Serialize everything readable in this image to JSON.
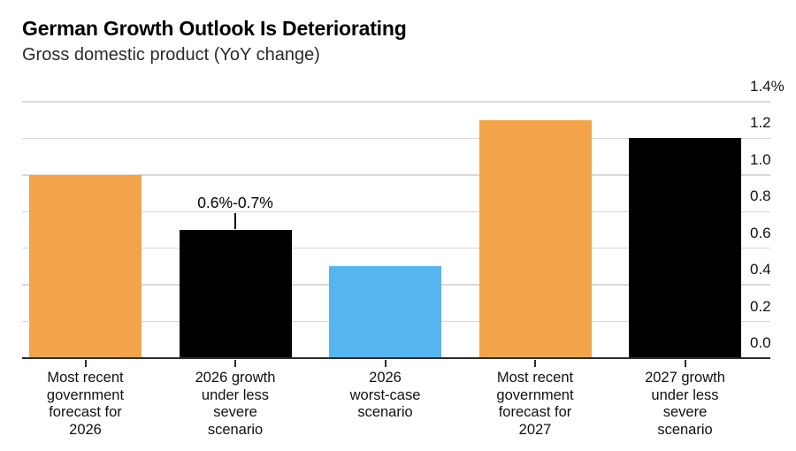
{
  "header": {
    "title": "German Growth Outlook Is Deteriorating",
    "subtitle": "Gross domestic product (YoY change)"
  },
  "chart_data": {
    "type": "bar",
    "title": "German Growth Outlook Is Deteriorating",
    "subtitle": "Gross domestic product (YoY change)",
    "categories": [
      "Most recent government forecast for 2026",
      "2026 growth under less severe scenario",
      "2026 worst-case scenario",
      "Most recent government forecast for 2027",
      "2027 growth under less severe scenario"
    ],
    "category_display": [
      "Most recent\ngovernment\nforecast for\n2026",
      "2026 growth\nunder less\nsevere\nscenario",
      "2026\nworst-case\nscenario",
      "Most recent\ngovernment\nforecast for\n2027",
      "2027 growth\nunder less\nsevere\nscenario"
    ],
    "values": [
      1.0,
      0.7,
      0.5,
      1.3,
      1.2
    ],
    "bar_colors": [
      "#f3a44a",
      "#000000",
      "#56b4ef",
      "#f3a44a",
      "#000000"
    ],
    "annotation": {
      "bar_index": 1,
      "text": "0.6%-0.7%"
    },
    "y_axis": {
      "min": 0.0,
      "max": 1.4,
      "step": 0.2,
      "side": "right",
      "tick_labels": [
        "0.0",
        "0.2",
        "0.4",
        "0.6",
        "0.8",
        "1.0",
        "1.2",
        "1.4%"
      ]
    },
    "xlabel": "",
    "ylabel": "",
    "grid": true,
    "legend": false,
    "colors": {
      "gridline": "#d8d8d8",
      "axis_line": "#2c2c2c",
      "tick_label": "#111111",
      "annotation_text": "#000000",
      "background": "#ffffff"
    }
  }
}
